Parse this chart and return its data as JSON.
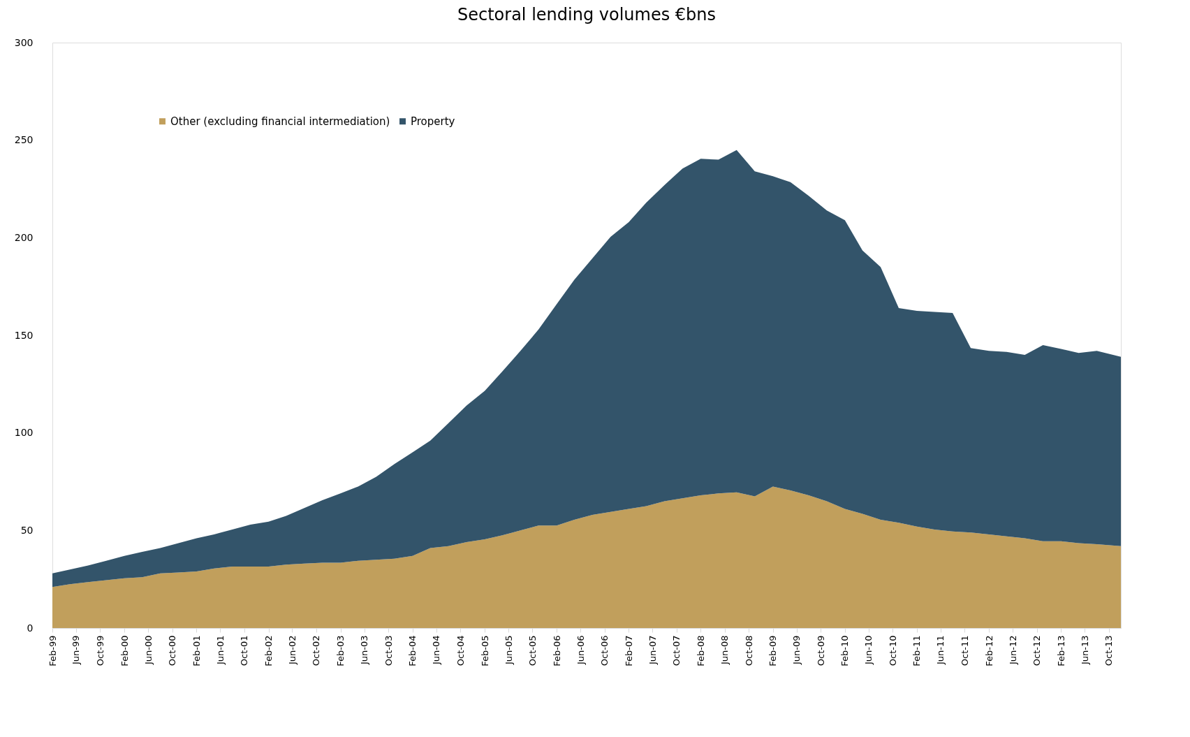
{
  "chart_data": {
    "type": "area",
    "title": "Sectoral lending volumes €bns",
    "stacked": true,
    "legend": "top left",
    "x": [
      "1999-02",
      "1999-05",
      "1999-08",
      "1999-11",
      "2000-02",
      "2000-05",
      "2000-08",
      "2000-11",
      "2001-02",
      "2001-05",
      "2001-08",
      "2001-11",
      "2002-02",
      "2002-05",
      "2002-08",
      "2002-11",
      "2003-02",
      "2003-05",
      "2003-08",
      "2003-11",
      "2004-02",
      "2004-05",
      "2004-08",
      "2004-11",
      "2005-02",
      "2005-05",
      "2005-08",
      "2005-11",
      "2006-02",
      "2006-05",
      "2006-08",
      "2006-11",
      "2007-02",
      "2007-05",
      "2007-08",
      "2007-11",
      "2008-02",
      "2008-05",
      "2008-08",
      "2008-11",
      "2009-02",
      "2009-05",
      "2009-08",
      "2009-11",
      "2010-02",
      "2010-05",
      "2010-08",
      "2010-11",
      "2011-02",
      "2011-05",
      "2011-08",
      "2011-11",
      "2012-02",
      "2012-05",
      "2012-08",
      "2012-11",
      "2013-02",
      "2013-05",
      "2013-08",
      "2013-12"
    ],
    "series": [
      {
        "name": "Other (excluding financial intermediation)",
        "color": "#c19f5c",
        "values": [
          21,
          22.5,
          23.5,
          24.5,
          25.5,
          26,
          28,
          28.5,
          29,
          30.5,
          31.5,
          31.5,
          31.5,
          32.5,
          33,
          33.5,
          33.5,
          34.5,
          35,
          35.5,
          37,
          41,
          42,
          44,
          45.5,
          47.5,
          50,
          52.5,
          52.5,
          55.5,
          58,
          59.5,
          61,
          62.5,
          65,
          66.5,
          68,
          69,
          69.5,
          67.5,
          72.5,
          70.5,
          68,
          65,
          61,
          58.5,
          55.5,
          54,
          52,
          50.5,
          49.5,
          49,
          48,
          47,
          46,
          44.5,
          44.5,
          43.5,
          43,
          42
        ]
      },
      {
        "name": "Property",
        "color": "#33546a",
        "values": [
          7,
          7.5,
          8.5,
          10,
          11.5,
          13,
          13,
          15,
          17,
          17.5,
          19,
          21.5,
          23,
          25,
          28.5,
          32,
          35.5,
          38,
          42.5,
          48.5,
          53,
          55,
          63,
          70,
          76,
          84,
          92,
          100.5,
          113.5,
          123,
          131.5,
          141,
          147,
          155.5,
          162,
          169,
          172.5,
          171,
          175.5,
          166.5,
          159,
          158,
          153.5,
          149,
          148,
          135,
          129.5,
          110,
          110.5,
          111.5,
          112,
          94.5,
          94,
          94.5,
          94,
          100.5,
          98.5,
          97.5,
          99,
          97
        ]
      }
    ],
    "xlim": [
      "1999-02",
      "2013-12"
    ],
    "xticks": [
      {
        "value": "1999-02",
        "label": "Feb-99"
      },
      {
        "value": "1999-06",
        "label": "Jun-99"
      },
      {
        "value": "1999-10",
        "label": "Oct-99"
      },
      {
        "value": "2000-02",
        "label": "Feb-00"
      },
      {
        "value": "2000-06",
        "label": "Jun-00"
      },
      {
        "value": "2000-10",
        "label": "Oct-00"
      },
      {
        "value": "2001-02",
        "label": "Feb-01"
      },
      {
        "value": "2001-06",
        "label": "Jun-01"
      },
      {
        "value": "2001-10",
        "label": "Oct-01"
      },
      {
        "value": "2002-02",
        "label": "Feb-02"
      },
      {
        "value": "2002-06",
        "label": "Jun-02"
      },
      {
        "value": "2002-10",
        "label": "Oct-02"
      },
      {
        "value": "2003-02",
        "label": "Feb-03"
      },
      {
        "value": "2003-06",
        "label": "Jun-03"
      },
      {
        "value": "2003-10",
        "label": "Oct-03"
      },
      {
        "value": "2004-02",
        "label": "Feb-04"
      },
      {
        "value": "2004-06",
        "label": "Jun-04"
      },
      {
        "value": "2004-10",
        "label": "Oct-04"
      },
      {
        "value": "2005-02",
        "label": "Feb-05"
      },
      {
        "value": "2005-06",
        "label": "Jun-05"
      },
      {
        "value": "2005-10",
        "label": "Oct-05"
      },
      {
        "value": "2006-02",
        "label": "Feb-06"
      },
      {
        "value": "2006-06",
        "label": "Jun-06"
      },
      {
        "value": "2006-10",
        "label": "Oct-06"
      },
      {
        "value": "2007-02",
        "label": "Feb-07"
      },
      {
        "value": "2007-06",
        "label": "Jun-07"
      },
      {
        "value": "2007-10",
        "label": "Oct-07"
      },
      {
        "value": "2008-02",
        "label": "Feb-08"
      },
      {
        "value": "2008-06",
        "label": "Jun-08"
      },
      {
        "value": "2008-10",
        "label": "Oct-08"
      },
      {
        "value": "2009-02",
        "label": "Feb-09"
      },
      {
        "value": "2009-06",
        "label": "Jun-09"
      },
      {
        "value": "2009-10",
        "label": "Oct-09"
      },
      {
        "value": "2010-02",
        "label": "Feb-10"
      },
      {
        "value": "2010-06",
        "label": "Jun-10"
      },
      {
        "value": "2010-10",
        "label": "Oct-10"
      },
      {
        "value": "2011-02",
        "label": "Feb-11"
      },
      {
        "value": "2011-06",
        "label": "Jun-11"
      },
      {
        "value": "2011-10",
        "label": "Oct-11"
      },
      {
        "value": "2012-02",
        "label": "Feb-12"
      },
      {
        "value": "2012-06",
        "label": "Jun-12"
      },
      {
        "value": "2012-10",
        "label": "Oct-12"
      },
      {
        "value": "2013-02",
        "label": "Feb-13"
      },
      {
        "value": "2013-06",
        "label": "Jun-13"
      },
      {
        "value": "2013-10",
        "label": "Oct-13"
      }
    ],
    "ylim": [
      0,
      300
    ],
    "yticks": [
      0,
      50,
      100,
      150,
      200,
      250,
      300
    ],
    "grid": false
  }
}
